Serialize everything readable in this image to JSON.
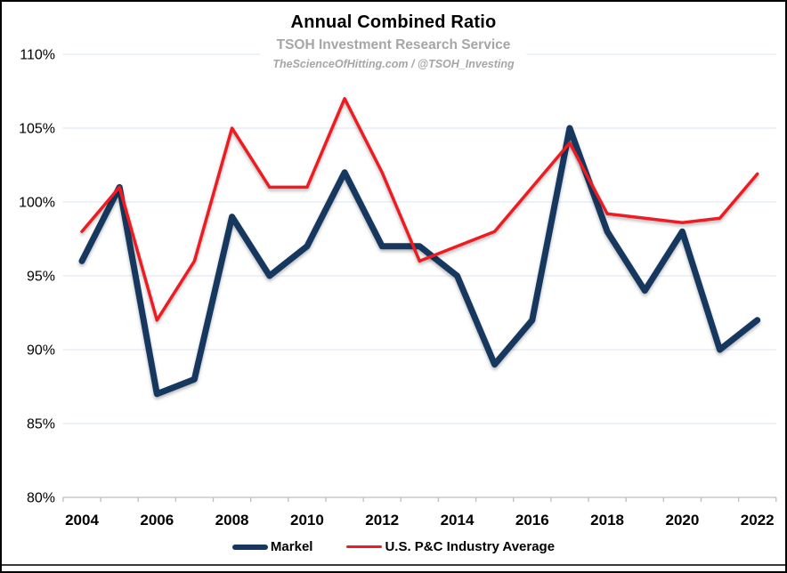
{
  "header": {
    "title": "Annual Combined Ratio",
    "subtitle": "TSOH Investment Research Service",
    "byline": "TheScienceOfHitting.com / @TSOH_Investing"
  },
  "chart_data": {
    "type": "line",
    "title": "Annual Combined Ratio",
    "categories": [
      2004,
      2005,
      2006,
      2007,
      2008,
      2009,
      2010,
      2011,
      2012,
      2013,
      2014,
      2015,
      2016,
      2017,
      2018,
      2019,
      2020,
      2021,
      2022
    ],
    "series": [
      {
        "name": "Markel",
        "color": "#17375e",
        "line_width": 7,
        "values": [
          96,
          101,
          87,
          88,
          99,
          95,
          97,
          102,
          97,
          97,
          95,
          89,
          92,
          105,
          98,
          94,
          98,
          90,
          92
        ]
      },
      {
        "name": "U.S. P&C Industry Average",
        "color": "#ed1c24",
        "line_width": 3.5,
        "values": [
          98,
          101,
          92,
          96,
          105,
          101,
          101,
          107,
          102,
          96,
          97,
          98,
          101,
          104,
          99.2,
          98.9,
          98.6,
          98.9,
          101.9
        ]
      }
    ],
    "ylim": [
      80,
      110
    ],
    "ytick_step": 5,
    "y_tick_labels": [
      "80%",
      "85%",
      "90%",
      "95%",
      "100%",
      "105%",
      "110%"
    ],
    "x_tick_labels": [
      "2004",
      "2006",
      "2008",
      "2010",
      "2012",
      "2014",
      "2016",
      "2018",
      "2020",
      "2022"
    ],
    "unit": "%",
    "grid": true,
    "grid_color": "#dbe5f1",
    "axis_color": "#bfbfbf",
    "legend_position": "bottom"
  }
}
